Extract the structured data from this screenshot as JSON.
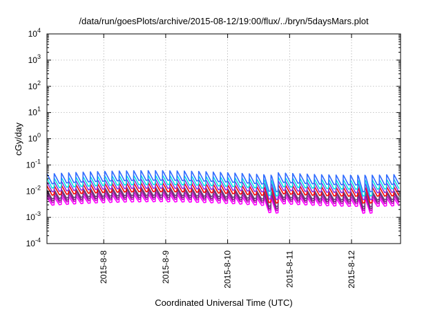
{
  "chart_data": {
    "type": "line",
    "title": "/data/run/goesPlots/archive/2015-08-12/19:00/flux/../bryn/5daysMars.plot",
    "xlabel": "Coordinated Universal Time (UTC)",
    "ylabel": "cGy/day",
    "yscale": "log",
    "ylim": [
      0.0001,
      10000
    ],
    "xlim": [
      "2015-08-07 02:00",
      "2015-08-12 19:00"
    ],
    "grid": true,
    "legend": "none",
    "y_ticks": [
      {
        "base": "10",
        "exp": "-4",
        "value": 0.0001
      },
      {
        "base": "10",
        "exp": "-3",
        "value": 0.001
      },
      {
        "base": "10",
        "exp": "-2",
        "value": 0.01
      },
      {
        "base": "10",
        "exp": "-1",
        "value": 0.1
      },
      {
        "base": "10",
        "exp": "0",
        "value": 1
      },
      {
        "base": "10",
        "exp": "1",
        "value": 10
      },
      {
        "base": "10",
        "exp": "2",
        "value": 100
      },
      {
        "base": "10",
        "exp": "3",
        "value": 1000
      },
      {
        "base": "10",
        "exp": "4",
        "value": 10000
      }
    ],
    "x_ticks": [
      {
        "label": "2015-8-8",
        "value": "2015-08-08 00:00"
      },
      {
        "label": "2015-8-9",
        "value": "2015-08-09 00:00"
      },
      {
        "label": "2015-8-10",
        "value": "2015-08-10 00:00"
      },
      {
        "label": "2015-8-11",
        "value": "2015-08-11 00:00"
      },
      {
        "label": "2015-8-12",
        "value": "2015-08-12 00:00"
      }
    ],
    "series": [
      {
        "color": "#ff00ff",
        "values": [
          0.0058,
          0.0029,
          0.0056,
          0.003
        ]
      },
      {
        "color": "#cc00cc",
        "values": [
          0.0073,
          0.0036,
          0.007,
          0.0038
        ]
      },
      {
        "color": "#7f1f7f",
        "values": [
          0.009,
          0.0042,
          0.0088,
          0.0045
        ]
      },
      {
        "color": "#6a3d7a",
        "values": [
          0.011,
          0.005,
          0.0105,
          0.0055
        ]
      },
      {
        "color": "#ff0000",
        "values": [
          0.016,
          0.007,
          0.015,
          0.0075
        ]
      },
      {
        "color": "#8a2be2",
        "values": [
          0.022,
          0.0095,
          0.021,
          0.01
        ]
      },
      {
        "color": "#00e5e5",
        "values": [
          0.03,
          0.013,
          0.029,
          0.014
        ]
      },
      {
        "color": "#2f6bff",
        "values": [
          0.045,
          0.019,
          0.043,
          0.02
        ]
      }
    ]
  }
}
